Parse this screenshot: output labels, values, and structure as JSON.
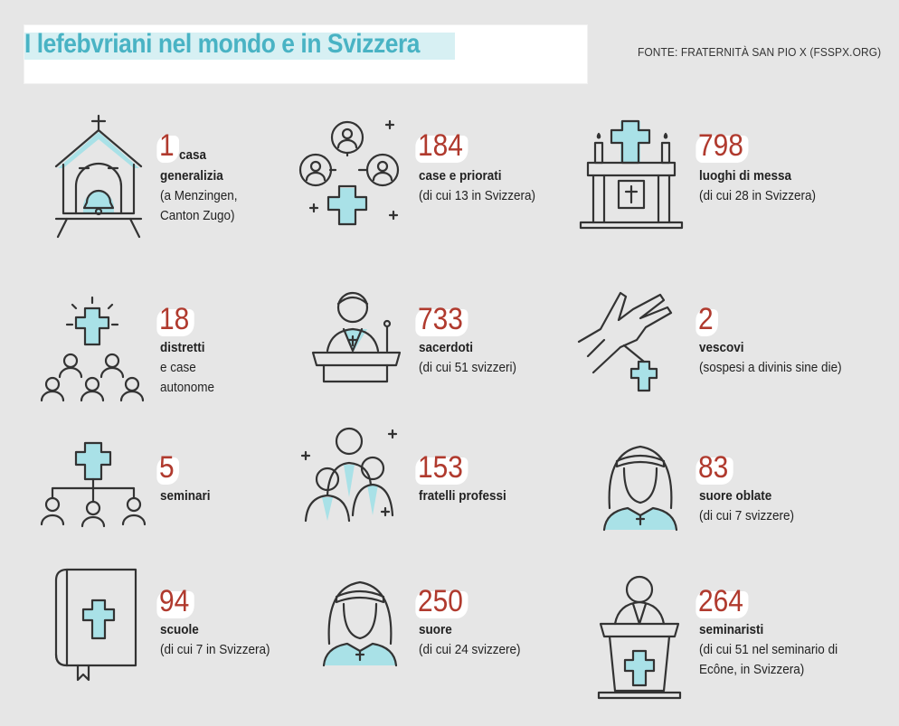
{
  "title": "I lefebvriani nel mondo e in Svizzera",
  "source": "FONTE: FRATERNITÀ SAN PIO X (FSSPX.ORG)",
  "colors": {
    "accent": "#49b3c4",
    "number": "#b03a2e",
    "background": "#e6e6e6",
    "icon_fill": "#a9e1e7"
  },
  "items": [
    {
      "icon": "church-bell-icon",
      "number": "1",
      "label_inline": "casa",
      "label": "generalizia",
      "sub": [
        "(a Menzingen,",
        "Canton Zugo)"
      ]
    },
    {
      "icon": "network-cross-icon",
      "number": "184",
      "label": "case e priorati",
      "sub": [
        "(di cui 13 in Svizzera)"
      ]
    },
    {
      "icon": "altar-icon",
      "number": "798",
      "label": "luoghi di messa",
      "sub": [
        "(di cui 28 in Svizzera)"
      ]
    },
    {
      "icon": "cross-community-icon",
      "number": "18",
      "label": "distretti",
      "sub": [
        "e case",
        "autonome"
      ]
    },
    {
      "icon": "priest-lectern-icon",
      "number": "733",
      "label": "sacerdoti",
      "sub": [
        "(di cui 51 svizzeri)"
      ]
    },
    {
      "icon": "praying-hands-icon",
      "number": "2",
      "label": "vescovi",
      "sub": [
        "(sospesi a divinis sine die)"
      ]
    },
    {
      "icon": "hierarchy-cross-icon",
      "number": "5",
      "label": "seminari",
      "sub": []
    },
    {
      "icon": "brothers-icon",
      "number": "153",
      "label": "fratelli professi",
      "sub": []
    },
    {
      "icon": "nun-icon",
      "number": "83",
      "label": "suore oblate",
      "sub": [
        "(di cui 7 svizzere)"
      ]
    },
    {
      "icon": "bible-icon",
      "number": "94",
      "label": "scuole",
      "sub": [
        "(di cui 7 in Svizzera)"
      ]
    },
    {
      "icon": "nun-icon",
      "number": "250",
      "label": "suore",
      "sub": [
        "(di cui 24 svizzere)"
      ]
    },
    {
      "icon": "seminarian-pulpit-icon",
      "number": "264",
      "label": "seminaristi",
      "sub": [
        "(di cui 51 nel seminario di",
        "Ecône, in Svizzera)"
      ]
    }
  ]
}
